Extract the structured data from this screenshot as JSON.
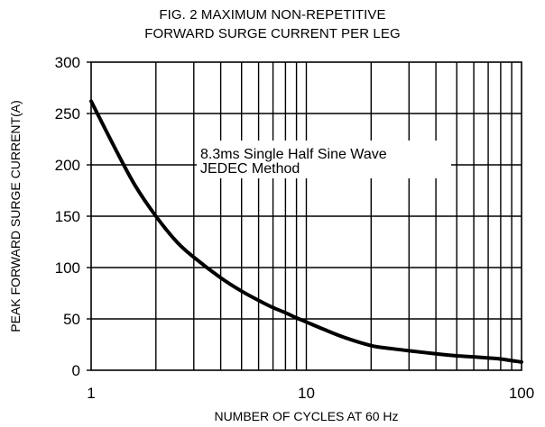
{
  "chart_data": {
    "type": "line",
    "title_lines": [
      "FIG. 2 MAXIMUM NON-REPETITIVE",
      "FORWARD SURGE CURRENT PER LEG"
    ],
    "xlabel": "NUMBER OF CYCLES AT 60 Hz",
    "ylabel": "PEAK FORWARD SURGE CURRENT(A)",
    "x_scale": "log",
    "xlim": [
      1,
      100
    ],
    "ylim": [
      0,
      300
    ],
    "x_ticks": [
      1,
      10,
      100
    ],
    "x_tick_labels": [
      "1",
      "10",
      "100"
    ],
    "y_ticks": [
      0,
      50,
      100,
      150,
      200,
      250,
      300
    ],
    "y_tick_labels": [
      "0",
      "50",
      "100",
      "150",
      "200",
      "250",
      "300"
    ],
    "grid": true,
    "annotation_lines": [
      "8.3ms Single Half Sine Wave",
      "JEDEC Method"
    ],
    "series": [
      {
        "x": [
          1,
          1.3,
          1.6,
          2,
          2.5,
          3,
          4,
          5,
          6,
          7,
          8,
          9,
          10,
          12,
          15,
          20,
          25,
          30,
          40,
          50,
          60,
          70,
          80,
          100
        ],
        "y": [
          262,
          215,
          180,
          150,
          125,
          110,
          90,
          77,
          68,
          61,
          56,
          51,
          47,
          40,
          32,
          24,
          21,
          19,
          16,
          14,
          13,
          12,
          11,
          8
        ]
      }
    ]
  }
}
